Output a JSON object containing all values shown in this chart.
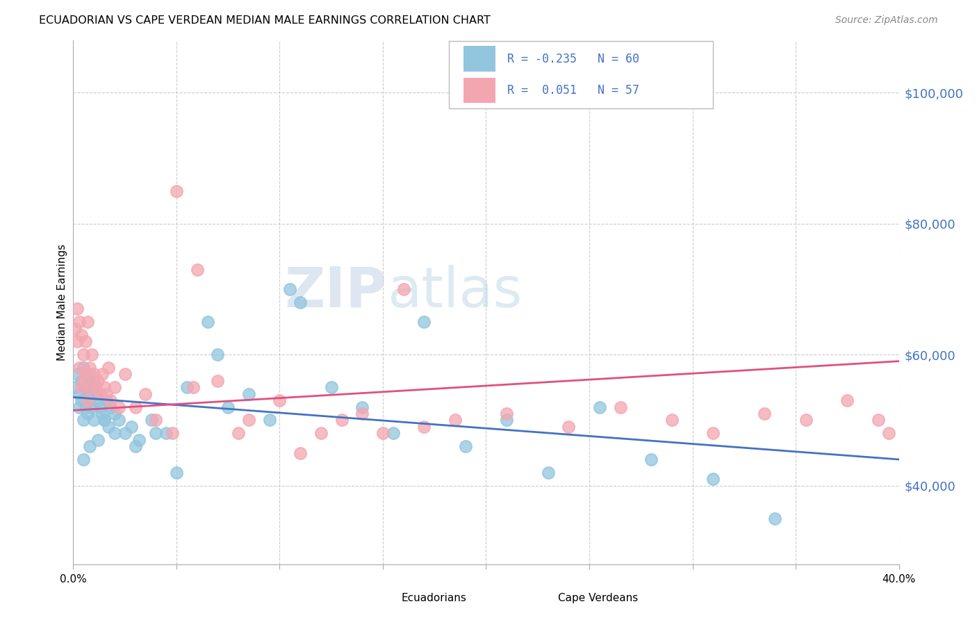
{
  "title": "ECUADORIAN VS CAPE VERDEAN MEDIAN MALE EARNINGS CORRELATION CHART",
  "source": "Source: ZipAtlas.com",
  "ylabel": "Median Male Earnings",
  "yticks": [
    40000,
    60000,
    80000,
    100000
  ],
  "ytick_labels": [
    "$40,000",
    "$60,000",
    "$80,000",
    "$100,000"
  ],
  "xlim": [
    0.0,
    0.4
  ],
  "ylim": [
    28000,
    108000
  ],
  "watermark_zip": "ZIP",
  "watermark_atlas": "atlas",
  "legend_ecu_label": "R = -0.235   N = 60",
  "legend_cap_label": "R =  0.051   N = 57",
  "bottom_ecu": "Ecuadorians",
  "bottom_cap": "Cape Verdeans",
  "ecuadorian_color": "#92c5de",
  "capeverdean_color": "#f4a6b0",
  "trend_blue": "#4472c4",
  "trend_pink": "#e05080",
  "right_axis_color": "#4472c4",
  "ecuadorian_points_x": [
    0.001,
    0.002,
    0.003,
    0.003,
    0.004,
    0.004,
    0.005,
    0.005,
    0.006,
    0.006,
    0.007,
    0.007,
    0.008,
    0.008,
    0.009,
    0.009,
    0.01,
    0.01,
    0.011,
    0.012,
    0.013,
    0.014,
    0.015,
    0.016,
    0.017,
    0.018,
    0.02,
    0.022,
    0.025,
    0.028,
    0.032,
    0.038,
    0.045,
    0.055,
    0.065,
    0.075,
    0.085,
    0.095,
    0.11,
    0.125,
    0.14,
    0.155,
    0.17,
    0.19,
    0.21,
    0.23,
    0.255,
    0.28,
    0.31,
    0.34,
    0.105,
    0.07,
    0.05,
    0.04,
    0.03,
    0.02,
    0.015,
    0.012,
    0.008,
    0.005
  ],
  "ecuadorian_points_y": [
    55000,
    57000,
    54000,
    52000,
    56000,
    53000,
    58000,
    50000,
    55000,
    52000,
    54000,
    51000,
    57000,
    53000,
    55000,
    52000,
    56000,
    50000,
    54000,
    53000,
    52000,
    51000,
    50000,
    53000,
    49000,
    52000,
    51000,
    50000,
    48000,
    49000,
    47000,
    50000,
    48000,
    55000,
    65000,
    52000,
    54000,
    50000,
    68000,
    55000,
    52000,
    48000,
    65000,
    46000,
    50000,
    42000,
    52000,
    44000,
    41000,
    35000,
    70000,
    60000,
    42000,
    48000,
    46000,
    48000,
    50000,
    47000,
    46000,
    44000
  ],
  "capeverdean_points_x": [
    0.001,
    0.002,
    0.002,
    0.003,
    0.003,
    0.004,
    0.004,
    0.005,
    0.005,
    0.006,
    0.006,
    0.007,
    0.007,
    0.008,
    0.008,
    0.009,
    0.01,
    0.011,
    0.012,
    0.013,
    0.014,
    0.015,
    0.016,
    0.017,
    0.018,
    0.02,
    0.022,
    0.025,
    0.03,
    0.035,
    0.04,
    0.048,
    0.058,
    0.07,
    0.085,
    0.1,
    0.12,
    0.14,
    0.16,
    0.185,
    0.21,
    0.24,
    0.265,
    0.29,
    0.31,
    0.335,
    0.355,
    0.375,
    0.39,
    0.395,
    0.05,
    0.06,
    0.08,
    0.11,
    0.13,
    0.15,
    0.17
  ],
  "capeverdean_points_y": [
    64000,
    67000,
    62000,
    65000,
    58000,
    63000,
    55000,
    60000,
    56000,
    62000,
    57000,
    65000,
    53000,
    58000,
    55000,
    60000,
    57000,
    55000,
    56000,
    54000,
    57000,
    55000,
    54000,
    58000,
    53000,
    55000,
    52000,
    57000,
    52000,
    54000,
    50000,
    48000,
    55000,
    56000,
    50000,
    53000,
    48000,
    51000,
    70000,
    50000,
    51000,
    49000,
    52000,
    50000,
    48000,
    51000,
    50000,
    53000,
    50000,
    48000,
    85000,
    73000,
    48000,
    45000,
    50000,
    48000,
    49000
  ]
}
